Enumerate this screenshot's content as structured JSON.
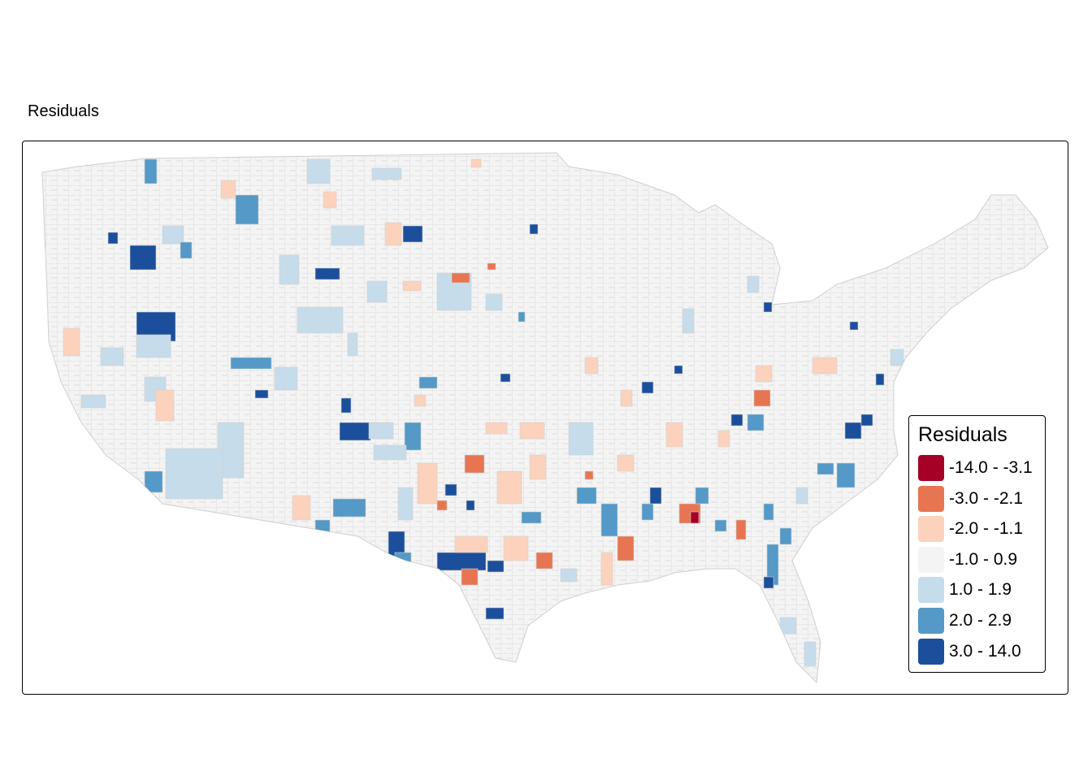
{
  "title": "Residuals",
  "legend": {
    "title": "Residuals",
    "items": [
      {
        "label": "-14.0 - -3.1",
        "color": "#a50026"
      },
      {
        "label": "-3.0 - -2.1",
        "color": "#e87552"
      },
      {
        "label": "-2.0 - -1.1",
        "color": "#fcd2bc"
      },
      {
        "label": "-1.0 - 0.9",
        "color": "#f4f4f4"
      },
      {
        "label": "1.0 - 1.9",
        "color": "#c6dcea"
      },
      {
        "label": "2.0 - 2.9",
        "color": "#5499c7"
      },
      {
        "label": "3.0 - 14.0",
        "color": "#1b4f9c"
      }
    ]
  },
  "map": {
    "region": "contiguous United States counties",
    "border_color": "#cccccc"
  }
}
